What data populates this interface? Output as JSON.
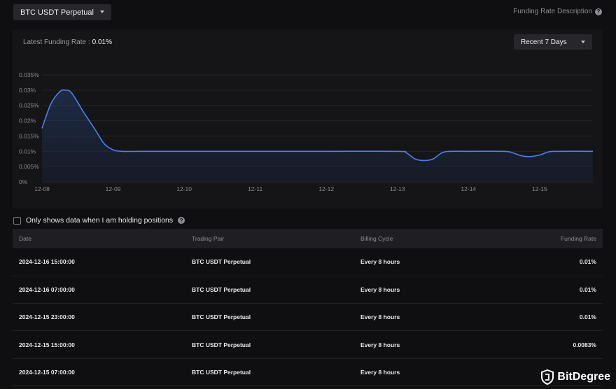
{
  "header": {
    "pair_label": "BTC USDT Perpetual",
    "description_link": "Funding Rate Description"
  },
  "chart_panel": {
    "latest_label": "Latest Funding Rate :",
    "latest_value": "0.01%",
    "range_label": "Recent 7 Days"
  },
  "chart_data": {
    "type": "area",
    "title": "",
    "xlabel": "",
    "ylabel": "",
    "x_ticks": [
      "12-08",
      "12-09",
      "12-10",
      "12-11",
      "12-12",
      "12-13",
      "12-14",
      "12-15"
    ],
    "y_ticks": [
      "0%",
      "0.005%",
      "0.01%",
      "0.015%",
      "0.02%",
      "0.025%",
      "0.03%",
      "0.035%"
    ],
    "ylim": [
      0,
      0.035
    ],
    "xlim": [
      0,
      7.75
    ],
    "grid": true,
    "line_color": "#4a80f0",
    "series": [
      {
        "values": [
          [
            0.0,
            0.0175
          ],
          [
            0.125,
            0.0255
          ],
          [
            0.25,
            0.0295
          ],
          [
            0.33,
            0.03
          ],
          [
            0.42,
            0.029
          ],
          [
            0.58,
            0.023
          ],
          [
            0.75,
            0.017
          ],
          [
            0.875,
            0.0125
          ],
          [
            1.0,
            0.0105
          ],
          [
            1.125,
            0.01
          ],
          [
            1.375,
            0.01
          ],
          [
            2.0,
            0.01
          ],
          [
            3.0,
            0.01
          ],
          [
            4.0,
            0.01
          ],
          [
            5.0,
            0.01
          ],
          [
            5.125,
            0.0095
          ],
          [
            5.25,
            0.0075
          ],
          [
            5.375,
            0.007
          ],
          [
            5.5,
            0.0075
          ],
          [
            5.625,
            0.0095
          ],
          [
            5.75,
            0.01
          ],
          [
            6.0,
            0.01
          ],
          [
            6.5,
            0.01
          ],
          [
            6.625,
            0.0095
          ],
          [
            6.75,
            0.0085
          ],
          [
            6.875,
            0.0083
          ],
          [
            7.0,
            0.0088
          ],
          [
            7.125,
            0.0098
          ],
          [
            7.25,
            0.01
          ],
          [
            7.75,
            0.01
          ]
        ]
      }
    ]
  },
  "filter": {
    "holding_label": "Only shows data when I am holding positions"
  },
  "table": {
    "headers": {
      "date": "Date",
      "pair": "Trading Pair",
      "cycle": "Billing Cycle",
      "rate": "Funding Rate"
    },
    "rows": [
      {
        "date": "2024-12-16 15:00:00",
        "pair": "BTC USDT Perpetual",
        "cycle": "Every 8 hours",
        "rate": "0.01%"
      },
      {
        "date": "2024-12-16 07:00:00",
        "pair": "BTC USDT Perpetual",
        "cycle": "Every 8 hours",
        "rate": "0.01%"
      },
      {
        "date": "2024-12-15 23:00:00",
        "pair": "BTC USDT Perpetual",
        "cycle": "Every 8 hours",
        "rate": "0.01%"
      },
      {
        "date": "2024-12-15 15:00:00",
        "pair": "BTC USDT Perpetual",
        "cycle": "Every 8 hours",
        "rate": "0.0083%"
      },
      {
        "date": "2024-12-15 07:00:00",
        "pair": "BTC USDT Perpetual",
        "cycle": "Every 8 hours",
        "rate": ""
      }
    ]
  },
  "watermark": {
    "brand": "BitDegree"
  }
}
